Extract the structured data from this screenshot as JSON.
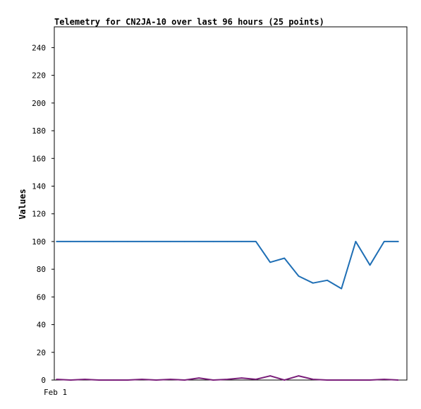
{
  "chart_data": {
    "type": "line",
    "title": "Telemetry for CN2JA-10 over last 96 hours (25 points)",
    "xlabel": "",
    "ylabel": "Values",
    "ylim": [
      0,
      255
    ],
    "yticks": [
      0,
      20,
      40,
      60,
      80,
      100,
      120,
      140,
      160,
      180,
      200,
      220,
      240
    ],
    "x_tick_labels": [
      {
        "index": 0,
        "label": "Feb 1"
      }
    ],
    "grid": false,
    "series": [
      {
        "color": "#1f6fb5",
        "values": [
          100,
          100,
          100,
          100,
          100,
          100,
          100,
          100,
          100,
          100,
          100,
          100,
          100,
          100,
          100,
          85,
          88,
          75,
          70,
          72,
          66,
          100,
          83,
          100,
          100
        ]
      },
      {
        "color": "#7a1f7a",
        "values": [
          0.5,
          0,
          0.5,
          0,
          0,
          0,
          0.5,
          0,
          0.5,
          0,
          1.5,
          0,
          0.5,
          1.5,
          0.5,
          3,
          0,
          3,
          0.5,
          0,
          0,
          0,
          0,
          0.5,
          0
        ]
      }
    ]
  }
}
